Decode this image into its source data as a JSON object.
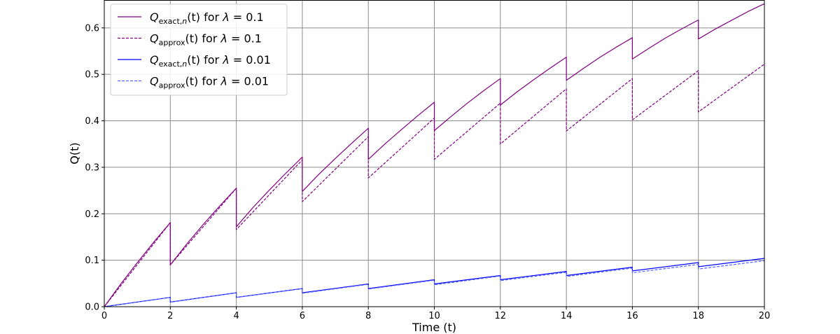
{
  "chart_data": {
    "type": "line",
    "xlabel": "Time (t)",
    "ylabel": "Q(t)",
    "xlim": [
      0,
      20
    ],
    "ylim": [
      0,
      0.66
    ],
    "xticks": [
      "0",
      "2",
      "4",
      "6",
      "8",
      "10",
      "12",
      "14",
      "16",
      "18",
      "20"
    ],
    "yticks": [
      "0.0",
      "0.1",
      "0.2",
      "0.3",
      "0.4",
      "0.5",
      "0.6"
    ],
    "grid": true,
    "legend_position": "top-left",
    "series": [
      {
        "name": "Q_exact,n(t) for λ = 0.1",
        "legend": {
          "main": "Q",
          "sub": "exact,",
          "subItalic": "n",
          "rest": "(t) for ",
          "lambda": "λ",
          "eq": " = 0.1"
        },
        "color": "#800080",
        "dash": "solid",
        "segments": [
          [
            [
              0,
              0.0
            ],
            [
              0.5,
              0.049
            ],
            [
              1.0,
              0.095
            ],
            [
              1.5,
              0.139
            ],
            [
              2,
              0.181
            ]
          ],
          [
            [
              2,
              0.09
            ],
            [
              2.5,
              0.135
            ],
            [
              3.0,
              0.177
            ],
            [
              3.5,
              0.217
            ],
            [
              4,
              0.255
            ]
          ],
          [
            [
              4,
              0.172
            ],
            [
              4.5,
              0.213
            ],
            [
              5.0,
              0.251
            ],
            [
              5.5,
              0.287
            ],
            [
              6,
              0.322
            ]
          ],
          [
            [
              6,
              0.248
            ],
            [
              6.5,
              0.285
            ],
            [
              7.0,
              0.319
            ],
            [
              7.5,
              0.352
            ],
            [
              8,
              0.384
            ]
          ],
          [
            [
              8,
              0.317
            ],
            [
              8.5,
              0.35
            ],
            [
              9.0,
              0.381
            ],
            [
              9.5,
              0.411
            ],
            [
              10,
              0.44
            ]
          ],
          [
            [
              10,
              0.379
            ],
            [
              10.5,
              0.409
            ],
            [
              11.0,
              0.438
            ],
            [
              11.5,
              0.465
            ],
            [
              12,
              0.491
            ]
          ],
          [
            [
              12,
              0.434
            ],
            [
              12.5,
              0.462
            ],
            [
              13.0,
              0.488
            ],
            [
              13.5,
              0.513
            ],
            [
              14,
              0.537
            ]
          ],
          [
            [
              14,
              0.487
            ],
            [
              14.5,
              0.512
            ],
            [
              15.0,
              0.536
            ],
            [
              15.5,
              0.558
            ],
            [
              16,
              0.579
            ]
          ],
          [
            [
              16,
              0.533
            ],
            [
              16.5,
              0.556
            ],
            [
              17.0,
              0.578
            ],
            [
              17.5,
              0.598
            ],
            [
              18,
              0.617
            ]
          ],
          [
            [
              18,
              0.576
            ],
            [
              18.5,
              0.597
            ],
            [
              19.0,
              0.616
            ],
            [
              19.5,
              0.635
            ],
            [
              20,
              0.652
            ]
          ]
        ]
      },
      {
        "name": "Q_approx(t) for λ = 0.1",
        "legend": {
          "main": "Q",
          "sub": "approx",
          "subItalic": "",
          "rest": "(t) for ",
          "lambda": "λ",
          "eq": " = 0.1"
        },
        "color": "#800080",
        "dash": "dashed",
        "segments": [
          [
            [
              0,
              0.0
            ],
            [
              2,
              0.181
            ]
          ],
          [
            [
              2,
              0.09
            ],
            [
              4,
              0.255
            ]
          ],
          [
            [
              4,
              0.166
            ],
            [
              6,
              0.316
            ]
          ],
          [
            [
              6,
              0.226
            ],
            [
              8,
              0.366
            ]
          ],
          [
            [
              8,
              0.277
            ],
            [
              10,
              0.406
            ]
          ],
          [
            [
              10,
              0.317
            ],
            [
              12,
              0.438
            ]
          ],
          [
            [
              12,
              0.35
            ],
            [
              14,
              0.469
            ]
          ],
          [
            [
              14,
              0.378
            ],
            [
              16,
              0.491
            ]
          ],
          [
            [
              16,
              0.402
            ],
            [
              18,
              0.508
            ]
          ],
          [
            [
              18,
              0.419
            ],
            [
              20,
              0.522
            ]
          ]
        ]
      },
      {
        "name": "Q_exact,n(t) for λ = 0.01",
        "legend": {
          "main": "Q",
          "sub": "exact,",
          "subItalic": "n",
          "rest": "(t) for ",
          "lambda": "λ",
          "eq": " = 0.01"
        },
        "color": "#0000ff",
        "dash": "solid",
        "segments": [
          [
            [
              0,
              0.0
            ],
            [
              2,
              0.02
            ]
          ],
          [
            [
              2,
              0.01
            ],
            [
              4,
              0.03
            ]
          ],
          [
            [
              4,
              0.02
            ],
            [
              6,
              0.039
            ]
          ],
          [
            [
              6,
              0.03
            ],
            [
              8,
              0.049
            ]
          ],
          [
            [
              8,
              0.039
            ],
            [
              10,
              0.058
            ]
          ],
          [
            [
              10,
              0.049
            ],
            [
              12,
              0.067
            ]
          ],
          [
            [
              12,
              0.058
            ],
            [
              14,
              0.076
            ]
          ],
          [
            [
              14,
              0.067
            ],
            [
              16,
              0.085
            ]
          ],
          [
            [
              16,
              0.077
            ],
            [
              18,
              0.095
            ]
          ],
          [
            [
              18,
              0.086
            ],
            [
              20,
              0.104
            ]
          ]
        ]
      },
      {
        "name": "Q_approx(t) for λ = 0.01",
        "legend": {
          "main": "Q",
          "sub": "approx",
          "subItalic": "",
          "rest": "(t) for ",
          "lambda": "λ",
          "eq": " = 0.01"
        },
        "color": "#5566ff",
        "dash": "dashed",
        "segments": [
          [
            [
              0,
              0.0
            ],
            [
              2,
              0.02
            ]
          ],
          [
            [
              2,
              0.01
            ],
            [
              4,
              0.03
            ]
          ],
          [
            [
              4,
              0.02
            ],
            [
              6,
              0.039
            ]
          ],
          [
            [
              6,
              0.029
            ],
            [
              8,
              0.048
            ]
          ],
          [
            [
              8,
              0.038
            ],
            [
              10,
              0.057
            ]
          ],
          [
            [
              10,
              0.047
            ],
            [
              12,
              0.066
            ]
          ],
          [
            [
              12,
              0.056
            ],
            [
              14,
              0.074
            ]
          ],
          [
            [
              14,
              0.065
            ],
            [
              16,
              0.083
            ]
          ],
          [
            [
              16,
              0.073
            ],
            [
              18,
              0.091
            ]
          ],
          [
            [
              18,
              0.081
            ],
            [
              20,
              0.099
            ]
          ]
        ]
      }
    ]
  }
}
